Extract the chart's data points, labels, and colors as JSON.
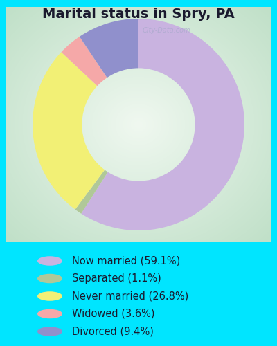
{
  "title": "Marital status in Spry, PA",
  "categories": [
    "Now married",
    "Separated",
    "Never married",
    "Widowed",
    "Divorced"
  ],
  "values": [
    59.1,
    1.1,
    26.8,
    3.6,
    9.4
  ],
  "colors": [
    "#c9b3e0",
    "#b0c898",
    "#f2f075",
    "#f5a8a8",
    "#9090cc"
  ],
  "legend_labels": [
    "Now married (59.1%)",
    "Separated (1.1%)",
    "Never married (26.8%)",
    "Widowed (3.6%)",
    "Divorced (9.4%)"
  ],
  "legend_colors": [
    "#c9b3e0",
    "#b0c898",
    "#f2f075",
    "#f5a8a8",
    "#9090cc"
  ],
  "bg_outer": "#00e5ff",
  "bg_inner_center": "#ffffff",
  "bg_inner_edge": "#c8e8c8",
  "watermark": "City-Data.com",
  "title_fontsize": 14,
  "legend_fontsize": 10.5,
  "donut_width": 0.42,
  "title_color": "#1a1a2e"
}
